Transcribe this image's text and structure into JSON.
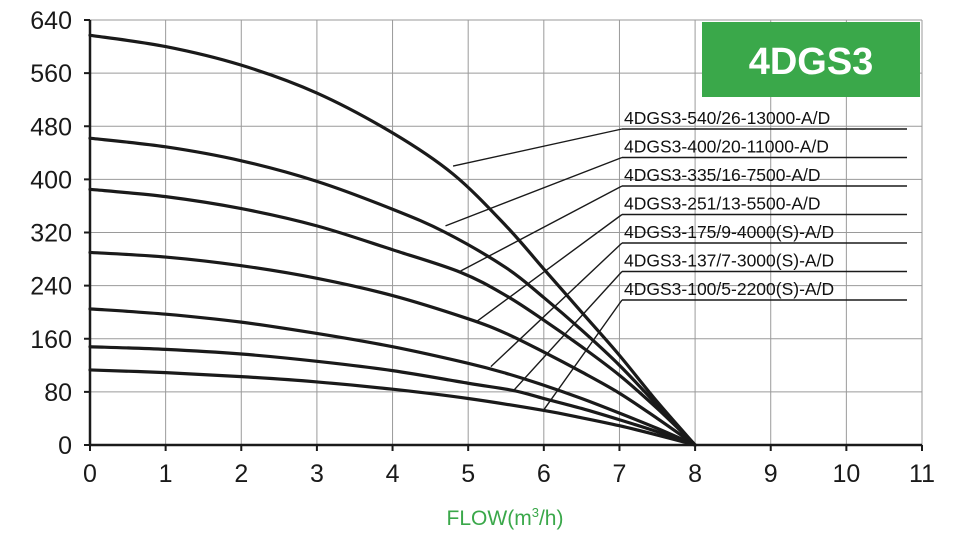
{
  "chart_data": {
    "type": "line",
    "title": "4DGS3",
    "xlabel": "FLOW(m",
    "xlabel_sup": "3",
    "xlabel_tail": "/h)",
    "ylabel": "",
    "xlim": [
      0,
      11
    ],
    "ylim": [
      0,
      640
    ],
    "x_ticks": [
      0,
      1,
      2,
      3,
      4,
      5,
      6,
      7,
      8,
      9,
      10,
      11
    ],
    "y_ticks": [
      0,
      80,
      160,
      240,
      320,
      400,
      480,
      560,
      640
    ],
    "grid": true,
    "series": [
      {
        "name": "4DGS3-540/26-13000-A/D",
        "x": [
          0,
          1,
          2,
          3,
          4,
          4.8,
          5.5,
          6,
          6.5,
          7,
          7.5,
          8
        ],
        "y": [
          617,
          600,
          572,
          530,
          470,
          408,
          330,
          265,
          200,
          135,
          65,
          0
        ],
        "label_anchor": [
          4.8,
          420
        ]
      },
      {
        "name": "4DGS3-400/20-11000-A/D",
        "x": [
          0,
          1,
          2,
          3,
          4,
          4.7,
          5.5,
          6,
          6.5,
          7,
          7.5,
          8
        ],
        "y": [
          462,
          449,
          428,
          397,
          355,
          320,
          267,
          222,
          173,
          120,
          60,
          0
        ],
        "label_anchor": [
          4.7,
          330
        ]
      },
      {
        "name": "4DGS3-335/16-7500-A/D",
        "x": [
          0,
          1,
          2,
          3,
          4,
          4.9,
          5.5,
          6,
          6.5,
          7,
          7.5,
          8
        ],
        "y": [
          385,
          374,
          356,
          330,
          294,
          260,
          225,
          188,
          148,
          105,
          55,
          0
        ],
        "label_anchor": [
          4.9,
          262
        ]
      },
      {
        "name": "4DGS3-251/13-5500-A/D",
        "x": [
          0,
          1,
          2,
          3,
          4,
          5,
          5.5,
          6,
          6.5,
          7,
          7.5,
          8
        ],
        "y": [
          290,
          283,
          270,
          251,
          225,
          190,
          168,
          140,
          110,
          78,
          40,
          0
        ],
        "label_anchor": [
          5.1,
          185
        ]
      },
      {
        "name": "4DGS3-175/9-4000(S)-A/D",
        "x": [
          0,
          1,
          2,
          3,
          4,
          5,
          5.5,
          6,
          6.5,
          7,
          7.5,
          8
        ],
        "y": [
          205,
          197,
          185,
          168,
          148,
          123,
          108,
          90,
          70,
          48,
          25,
          0
        ],
        "label_anchor": [
          5.3,
          118
        ]
      },
      {
        "name": "4DGS3-137/7-3000(S)-A/D",
        "x": [
          0,
          1,
          2,
          3,
          4,
          5,
          5.6,
          6,
          6.5,
          7,
          7.5,
          8
        ],
        "y": [
          148,
          144,
          137,
          126,
          112,
          93,
          82,
          70,
          55,
          38,
          20,
          0
        ],
        "label_anchor": [
          5.6,
          82
        ]
      },
      {
        "name": "4DGS3-100/5-2200(S)-A/D",
        "x": [
          0,
          1,
          2,
          3,
          4,
          5,
          6,
          6.5,
          7,
          7.5,
          8
        ],
        "y": [
          113,
          109,
          103,
          95,
          84,
          70,
          52,
          41,
          29,
          15,
          0
        ],
        "label_anchor": [
          6.0,
          53
        ]
      }
    ]
  },
  "colors": {
    "curve": "#1a1a1a",
    "grid": "#9a9a9a",
    "axis": "#1a1a1a",
    "badge_bg": "#3aa84a",
    "badge_text": "#ffffff",
    "xlabel": "#3aa84a"
  }
}
